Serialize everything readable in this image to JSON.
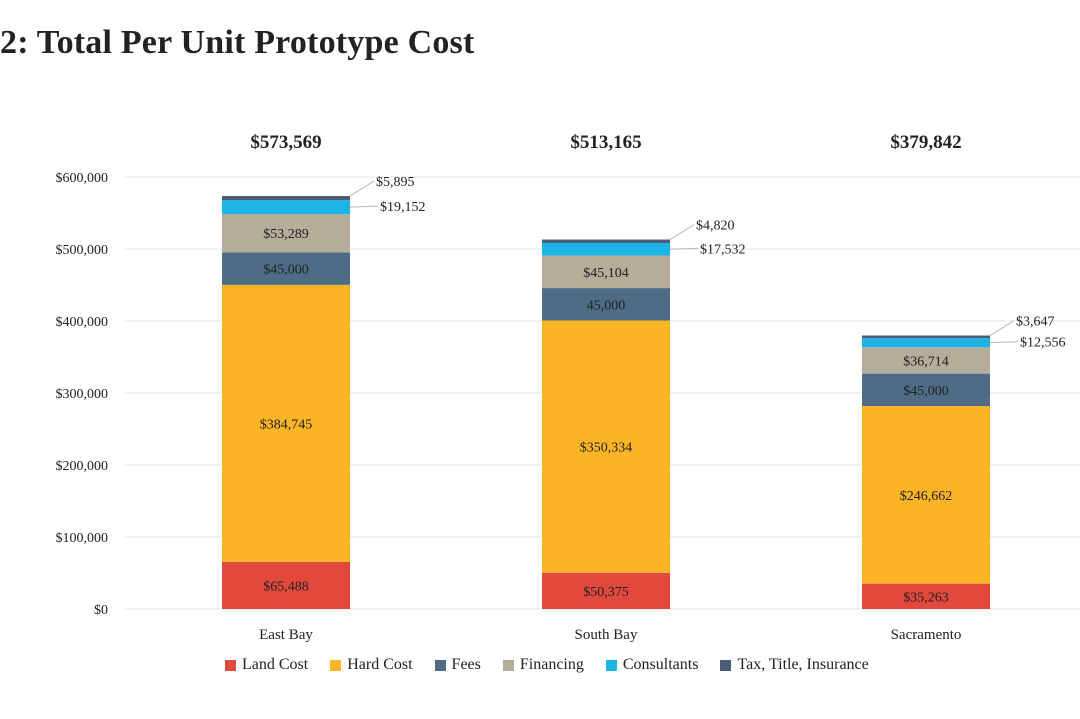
{
  "page": {
    "title": "2: Total Per Unit Prototype Cost"
  },
  "colors": {
    "land": "#e2483b",
    "hard": "#fbb423",
    "fees": "#4e6c85",
    "financing": "#b4ad9a",
    "consultants": "#1eb4e6",
    "tax": "#4a5d74",
    "gridline": "#e6e6e6",
    "callout_line": "#b8b8b8"
  },
  "chart_data": {
    "type": "bar",
    "stacked": true,
    "categories": [
      "East Bay",
      "South Bay",
      "Sacramento"
    ],
    "totals": [
      "$573,569",
      "$513,165",
      "$379,842"
    ],
    "series": [
      {
        "key": "land",
        "name": "Land Cost",
        "values": [
          65488,
          50375,
          35263
        ],
        "labels": [
          "$65,488",
          "$50,375",
          "$35,263"
        ]
      },
      {
        "key": "hard",
        "name": "Hard Cost",
        "values": [
          384745,
          350334,
          246662
        ],
        "labels": [
          "$384,745",
          "$350,334",
          "$246,662"
        ]
      },
      {
        "key": "fees",
        "name": "Fees",
        "values": [
          45000,
          45000,
          45000
        ],
        "labels": [
          "$45,000",
          "45,000",
          "$45,000"
        ]
      },
      {
        "key": "financing",
        "name": "Financing",
        "values": [
          53289,
          45104,
          36714
        ],
        "labels": [
          "$53,289",
          "$45,104",
          "$36,714"
        ]
      },
      {
        "key": "consultants",
        "name": "Consultants",
        "values": [
          19152,
          17532,
          12556
        ],
        "labels": [
          "$19,152",
          "$17,532",
          "$12,556"
        ]
      },
      {
        "key": "tax",
        "name": "Tax, Title, Insurance",
        "values": [
          5895,
          4820,
          3647
        ],
        "labels": [
          "$5,895",
          "$4,820",
          "$3,647"
        ]
      }
    ],
    "y_ticks": [
      "$0",
      "$100,000",
      "$200,000",
      "$300,000",
      "$400,000",
      "$500,000",
      "$600,000"
    ],
    "ylim": [
      0,
      600000
    ],
    "grid": true,
    "legend_position": "bottom"
  }
}
